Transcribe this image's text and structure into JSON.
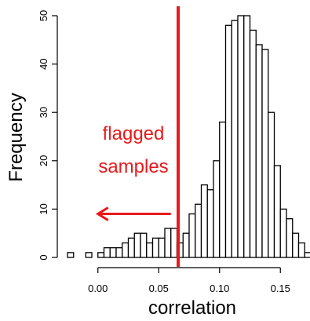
{
  "chart_data": {
    "type": "bar",
    "subtype": "histogram",
    "xlabel": "correlation",
    "ylabel": "Frequency",
    "xlim": [
      -0.025,
      0.175
    ],
    "ylim": [
      0,
      50
    ],
    "bin_width": 0.005,
    "bins": [
      {
        "start": -0.025,
        "count": 1
      },
      {
        "start": -0.02,
        "count": 0
      },
      {
        "start": -0.015,
        "count": 0
      },
      {
        "start": -0.01,
        "count": 1
      },
      {
        "start": -0.005,
        "count": 0
      },
      {
        "start": 0.0,
        "count": 1
      },
      {
        "start": 0.005,
        "count": 2
      },
      {
        "start": 0.01,
        "count": 2
      },
      {
        "start": 0.015,
        "count": 2
      },
      {
        "start": 0.02,
        "count": 3
      },
      {
        "start": 0.025,
        "count": 4
      },
      {
        "start": 0.03,
        "count": 5
      },
      {
        "start": 0.035,
        "count": 5
      },
      {
        "start": 0.04,
        "count": 3
      },
      {
        "start": 0.045,
        "count": 4
      },
      {
        "start": 0.05,
        "count": 4
      },
      {
        "start": 0.055,
        "count": 6
      },
      {
        "start": 0.06,
        "count": 6
      },
      {
        "start": 0.065,
        "count": 3
      },
      {
        "start": 0.07,
        "count": 5
      },
      {
        "start": 0.075,
        "count": 9
      },
      {
        "start": 0.08,
        "count": 11
      },
      {
        "start": 0.085,
        "count": 15
      },
      {
        "start": 0.09,
        "count": 14
      },
      {
        "start": 0.095,
        "count": 20
      },
      {
        "start": 0.1,
        "count": 28
      },
      {
        "start": 0.105,
        "count": 48
      },
      {
        "start": 0.11,
        "count": 49
      },
      {
        "start": 0.115,
        "count": 50
      },
      {
        "start": 0.12,
        "count": 50
      },
      {
        "start": 0.125,
        "count": 47
      },
      {
        "start": 0.13,
        "count": 44
      },
      {
        "start": 0.135,
        "count": 43
      },
      {
        "start": 0.14,
        "count": 30
      },
      {
        "start": 0.145,
        "count": 19
      },
      {
        "start": 0.15,
        "count": 10
      },
      {
        "start": 0.155,
        "count": 8
      },
      {
        "start": 0.16,
        "count": 5
      },
      {
        "start": 0.165,
        "count": 3
      },
      {
        "start": 0.17,
        "count": 1
      }
    ],
    "x_ticks": [
      {
        "value": 0.0,
        "label": "0.00"
      },
      {
        "value": 0.05,
        "label": "0.05"
      },
      {
        "value": 0.1,
        "label": "0.10"
      },
      {
        "value": 0.15,
        "label": "0.15"
      }
    ],
    "y_ticks": [
      {
        "value": 0,
        "label": "0"
      },
      {
        "value": 10,
        "label": "10"
      },
      {
        "value": 20,
        "label": "20"
      },
      {
        "value": 30,
        "label": "30"
      },
      {
        "value": 40,
        "label": "40"
      },
      {
        "value": 50,
        "label": "50"
      }
    ],
    "threshold": {
      "x": 0.066,
      "color": "#e8191c"
    },
    "annotation": {
      "lines": [
        "flagged",
        "samples"
      ],
      "arrow_direction": "left",
      "arrow_from": 0.06,
      "arrow_to": 0.0,
      "arrow_y": 9,
      "color": "#e8191c"
    },
    "bar_fill": "#ffffff",
    "bar_stroke": "#000000",
    "grid": false
  }
}
